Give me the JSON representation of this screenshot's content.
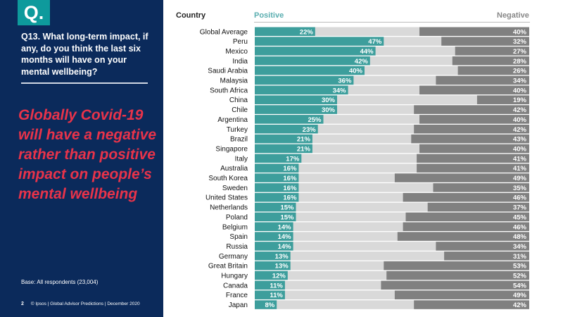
{
  "slide": {
    "logo": "Q.",
    "question": "Q13. What long-term impact, if any, do you think the last six months will have on your mental wellbeing?",
    "headline": "Globally Covid-19 will have a negative rather than positive impact on people’s mental wellbeing",
    "base": "Base: All respondents (23,004)",
    "page_number": "2",
    "footer": "© Ipsos | Global Advisor Predictions | December 2020"
  },
  "colors": {
    "background_panel": "#0b2a5b",
    "logo": "#0e9a9c",
    "headline": "#e8334a",
    "positive": "#3d9e9c",
    "neutral": "#d9d9d9",
    "negative": "#808080"
  },
  "chart_data": {
    "type": "bar",
    "orientation": "horizontal-stacked",
    "headers": {
      "category": "Country",
      "positive": "Positive",
      "negative": "Negative"
    },
    "xlim": [
      0,
      100
    ],
    "categories": [
      "Global Average",
      "Peru",
      "Mexico",
      "India",
      "Saudi Arabia",
      "Malaysia",
      "South Africa",
      "China",
      "Chile",
      "Argentina",
      "Turkey",
      "Brazil",
      "Singapore",
      "Italy",
      "Australia",
      "South Korea",
      "Sweden",
      "United States",
      "Netherlands",
      "Poland",
      "Belgium",
      "Spain",
      "Russia",
      "Germany",
      "Great Britain",
      "Hungary",
      "Canada",
      "France",
      "Japan"
    ],
    "series": [
      {
        "name": "Positive",
        "values": [
          22,
          47,
          44,
          42,
          40,
          36,
          34,
          30,
          30,
          25,
          23,
          21,
          21,
          17,
          16,
          16,
          16,
          16,
          15,
          15,
          14,
          14,
          14,
          13,
          13,
          12,
          11,
          11,
          8
        ]
      },
      {
        "name": "Negative",
        "values": [
          40,
          32,
          27,
          28,
          26,
          34,
          40,
          19,
          42,
          40,
          42,
          43,
          40,
          41,
          41,
          49,
          35,
          46,
          37,
          45,
          46,
          48,
          34,
          31,
          53,
          52,
          54,
          49,
          42
        ]
      }
    ]
  }
}
